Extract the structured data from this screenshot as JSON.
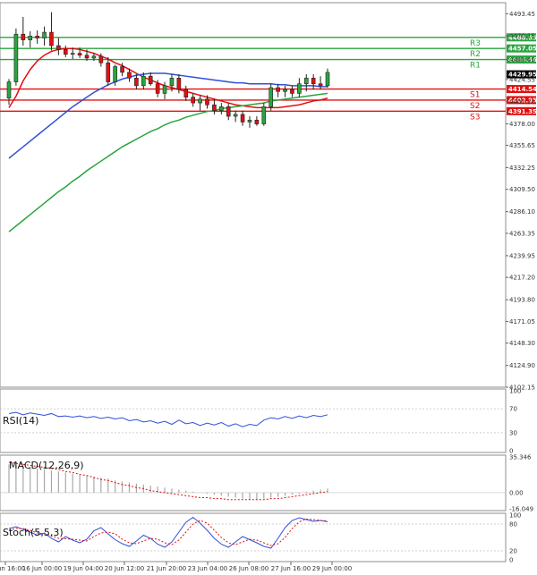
{
  "chart_data": [
    {
      "type": "candlestick",
      "panel": "price",
      "ylim": [
        4102.15,
        4505
      ],
      "y_ticks": [
        "4493.45",
        "4470.15",
        "4445.46",
        "4424.55",
        "4401.25",
        "4378.00",
        "4355.65",
        "4332.25",
        "4309.50",
        "4286.10",
        "4263.35",
        "4239.95",
        "4217.20",
        "4193.80",
        "4171.05",
        "4148.30",
        "4124.90",
        "4102.15"
      ],
      "x_ticks": [
        "16 Jun 16:00",
        "16 Jun 00:00",
        "19 Jun 04:00",
        "20 Jun 12:00",
        "21 Jun 20:00",
        "23 Jun 04:00",
        "26 Jun 08:00",
        "27 Jun 16:00",
        "29 Jun 00:00"
      ],
      "current_price": "4429.95",
      "last_value": "4424.55",
      "candles": [
        {
          "o": 4405,
          "h": 4425,
          "l": 4398,
          "c": 4422
        },
        {
          "o": 4422,
          "h": 4478,
          "l": 4418,
          "c": 4472
        },
        {
          "o": 4472,
          "h": 4490,
          "l": 4460,
          "c": 4466
        },
        {
          "o": 4466,
          "h": 4475,
          "l": 4458,
          "c": 4470
        },
        {
          "o": 4470,
          "h": 4476,
          "l": 4462,
          "c": 4468
        },
        {
          "o": 4468,
          "h": 4480,
          "l": 4460,
          "c": 4474
        },
        {
          "o": 4474,
          "h": 4495,
          "l": 4455,
          "c": 4460
        },
        {
          "o": 4460,
          "h": 4468,
          "l": 4450,
          "c": 4456
        },
        {
          "o": 4456,
          "h": 4460,
          "l": 4448,
          "c": 4451
        },
        {
          "o": 4451,
          "h": 4458,
          "l": 4446,
          "c": 4452
        },
        {
          "o": 4452,
          "h": 4458,
          "l": 4447,
          "c": 4450
        },
        {
          "o": 4450,
          "h": 4456,
          "l": 4444,
          "c": 4447
        },
        {
          "o": 4447,
          "h": 4452,
          "l": 4444,
          "c": 4449
        },
        {
          "o": 4449,
          "h": 4452,
          "l": 4438,
          "c": 4442
        },
        {
          "o": 4442,
          "h": 4448,
          "l": 4418,
          "c": 4422
        },
        {
          "o": 4422,
          "h": 4440,
          "l": 4418,
          "c": 4438
        },
        {
          "o": 4438,
          "h": 4442,
          "l": 4428,
          "c": 4432
        },
        {
          "o": 4432,
          "h": 4436,
          "l": 4422,
          "c": 4426
        },
        {
          "o": 4426,
          "h": 4430,
          "l": 4414,
          "c": 4418
        },
        {
          "o": 4418,
          "h": 4432,
          "l": 4414,
          "c": 4428
        },
        {
          "o": 4428,
          "h": 4432,
          "l": 4418,
          "c": 4420
        },
        {
          "o": 4420,
          "h": 4424,
          "l": 4406,
          "c": 4410
        },
        {
          "o": 4410,
          "h": 4422,
          "l": 4404,
          "c": 4418
        },
        {
          "o": 4418,
          "h": 4430,
          "l": 4412,
          "c": 4426
        },
        {
          "o": 4426,
          "h": 4430,
          "l": 4410,
          "c": 4414
        },
        {
          "o": 4414,
          "h": 4418,
          "l": 4402,
          "c": 4406
        },
        {
          "o": 4406,
          "h": 4410,
          "l": 4396,
          "c": 4400
        },
        {
          "o": 4400,
          "h": 4408,
          "l": 4392,
          "c": 4404
        },
        {
          "o": 4404,
          "h": 4408,
          "l": 4394,
          "c": 4398
        },
        {
          "o": 4398,
          "h": 4404,
          "l": 4388,
          "c": 4392
        },
        {
          "o": 4392,
          "h": 4400,
          "l": 4388,
          "c": 4396
        },
        {
          "o": 4396,
          "h": 4400,
          "l": 4382,
          "c": 4386
        },
        {
          "o": 4386,
          "h": 4392,
          "l": 4380,
          "c": 4388
        },
        {
          "o": 4388,
          "h": 4392,
          "l": 4376,
          "c": 4380
        },
        {
          "o": 4380,
          "h": 4386,
          "l": 4374,
          "c": 4382
        },
        {
          "o": 4382,
          "h": 4386,
          "l": 4376,
          "c": 4378
        },
        {
          "o": 4378,
          "h": 4400,
          "l": 4376,
          "c": 4396
        },
        {
          "o": 4396,
          "h": 4420,
          "l": 4392,
          "c": 4416
        },
        {
          "o": 4416,
          "h": 4420,
          "l": 4406,
          "c": 4412
        },
        {
          "o": 4412,
          "h": 4418,
          "l": 4406,
          "c": 4414
        },
        {
          "o": 4414,
          "h": 4418,
          "l": 4406,
          "c": 4410
        },
        {
          "o": 4410,
          "h": 4426,
          "l": 4406,
          "c": 4420
        },
        {
          "o": 4420,
          "h": 4430,
          "l": 4412,
          "c": 4426
        },
        {
          "o": 4426,
          "h": 4430,
          "l": 4414,
          "c": 4420
        },
        {
          "o": 4420,
          "h": 4428,
          "l": 4414,
          "c": 4418
        },
        {
          "o": 4418,
          "h": 4436,
          "l": 4416,
          "c": 4432
        }
      ],
      "moving_averages": [
        {
          "name": "MA fast",
          "color": "#e01010",
          "values": [
            4395,
            4407,
            4423,
            4435,
            4444,
            4450,
            4454,
            4456,
            4457,
            4457,
            4456,
            4454,
            4452,
            4449,
            4446,
            4442,
            4439,
            4435,
            4431,
            4427,
            4424,
            4421,
            4418,
            4416,
            4414,
            4412,
            4410,
            4408,
            4406,
            4404,
            4402,
            4400,
            4398,
            4397,
            4396,
            4395,
            4395,
            4395,
            4395,
            4396,
            4397,
            4398,
            4400,
            4402,
            4403,
            4405
          ]
        },
        {
          "name": "MA medium",
          "color": "#3050d8",
          "values": [
            4342,
            4348,
            4354,
            4360,
            4366,
            4372,
            4378,
            4384,
            4390,
            4396,
            4401,
            4406,
            4411,
            4415,
            4419,
            4422,
            4425,
            4427,
            4429,
            4430,
            4431,
            4431,
            4431,
            4430,
            4429,
            4428,
            4427,
            4426,
            4425,
            4424,
            4423,
            4422,
            4421,
            4421,
            4420,
            4420,
            4420,
            4420,
            4419,
            4419,
            4418,
            4418,
            4418,
            4418,
            4417,
            4417
          ]
        },
        {
          "name": "MA slow",
          "color": "#2aa43e",
          "values": [
            4265,
            4271,
            4277,
            4283,
            4289,
            4295,
            4301,
            4307,
            4312,
            4318,
            4323,
            4329,
            4334,
            4339,
            4344,
            4349,
            4354,
            4358,
            4362,
            4366,
            4370,
            4373,
            4377,
            4380,
            4382,
            4385,
            4387,
            4389,
            4391,
            4392,
            4394,
            4395,
            4396,
            4397,
            4398,
            4399,
            4400,
            4402,
            4403,
            4404,
            4405,
            4406,
            4407,
            4408,
            4409,
            4410
          ]
        }
      ],
      "levels": [
        {
          "name": "R3",
          "value": 4468.65,
          "label": "4468.65",
          "color": "#2aa43e"
        },
        {
          "name": "R2",
          "value": 4457.05,
          "label": "4457.05",
          "color": "#2aa43e"
        },
        {
          "name": "R1",
          "value": 4445.46,
          "label": "4445.46",
          "color": "#2aa43e"
        },
        {
          "name": "S1",
          "value": 4414.54,
          "label": "4414.54",
          "color": "#e01010"
        },
        {
          "name": "S2",
          "value": 4402.95,
          "label": "4402.95",
          "color": "#e01010"
        },
        {
          "name": "S3",
          "value": 4391.35,
          "label": "4391.35",
          "color": "#e01010"
        }
      ]
    },
    {
      "type": "line",
      "panel": "rsi",
      "title": "RSI(14)",
      "ylim": [
        0,
        100
      ],
      "y_ticks": [
        "100",
        "70",
        "30",
        "0"
      ],
      "ref_levels": [
        70,
        30
      ],
      "series": [
        {
          "name": "RSI(14)",
          "color": "#3050d8",
          "values": [
            62,
            64,
            60,
            63,
            61,
            59,
            62,
            57,
            58,
            56,
            58,
            55,
            57,
            54,
            56,
            53,
            55,
            50,
            52,
            48,
            50,
            46,
            49,
            44,
            51,
            45,
            47,
            42,
            46,
            43,
            47,
            41,
            45,
            40,
            44,
            42,
            51,
            55,
            53,
            57,
            54,
            58,
            55,
            59,
            57,
            60
          ]
        }
      ]
    },
    {
      "type": "bar",
      "panel": "macd",
      "title": "MACD(12,26,9)",
      "ylim": [
        -16.049,
        35.346
      ],
      "y_ticks": [
        "35.346",
        "0.00",
        "-16.049"
      ],
      "series": [
        {
          "name": "MACD histogram",
          "color": "#a8a8a8",
          "values": [
            28,
            27,
            26,
            25,
            24,
            23,
            22,
            21,
            20,
            19,
            18,
            17,
            16,
            15,
            14,
            12,
            11,
            10,
            9,
            8,
            7,
            6,
            5,
            4,
            3,
            2,
            1,
            0,
            -1,
            -2,
            -3,
            -4,
            -5,
            -6,
            -7,
            -7,
            -6,
            -5,
            -4,
            -3,
            -2,
            -1,
            1,
            2,
            3,
            4
          ]
        },
        {
          "name": "Signal",
          "color": "#e01010",
          "values": [
            30,
            29,
            28,
            27,
            26,
            25,
            24,
            23,
            21,
            20,
            18,
            17,
            15,
            13,
            12,
            10,
            8,
            7,
            5,
            4,
            2,
            1,
            0,
            -1,
            -2,
            -3,
            -4,
            -5,
            -5,
            -6,
            -6,
            -7,
            -7,
            -7,
            -7,
            -7,
            -7,
            -6,
            -6,
            -5,
            -4,
            -3,
            -2,
            -1,
            0,
            1
          ]
        }
      ]
    },
    {
      "type": "line",
      "panel": "stochastic",
      "title": "Stoch(5,5,3)",
      "ylim": [
        0,
        100
      ],
      "y_ticks": [
        "100",
        "80",
        "20",
        "0"
      ],
      "ref_levels": [
        80,
        20
      ],
      "series": [
        {
          "name": "%K",
          "color": "#3050d8",
          "values": [
            70,
            74,
            68,
            62,
            55,
            60,
            48,
            40,
            52,
            44,
            38,
            46,
            65,
            72,
            58,
            45,
            36,
            30,
            42,
            55,
            48,
            35,
            28,
            40,
            62,
            84,
            95,
            82,
            66,
            48,
            35,
            28,
            40,
            52,
            45,
            38,
            30,
            26,
            48,
            72,
            88,
            94,
            90,
            86,
            88,
            85
          ]
        },
        {
          "name": "%D",
          "color": "#e01010",
          "values": [
            66,
            70,
            70,
            66,
            60,
            58,
            54,
            48,
            47,
            46,
            44,
            42,
            52,
            60,
            62,
            58,
            46,
            38,
            36,
            42,
            48,
            46,
            38,
            34,
            44,
            62,
            80,
            88,
            82,
            66,
            50,
            38,
            34,
            40,
            46,
            44,
            38,
            32,
            36,
            50,
            70,
            85,
            91,
            90,
            88,
            87
          ]
        }
      ]
    }
  ]
}
